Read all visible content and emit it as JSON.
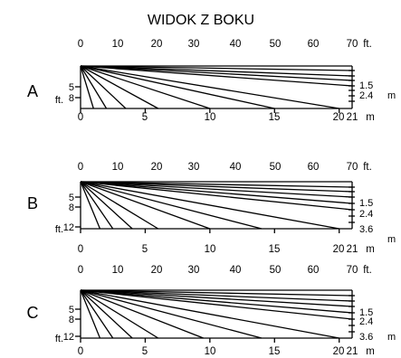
{
  "title": "WIDOK Z BOKU",
  "ft_tick_labels": [
    "0",
    "10",
    "20",
    "30",
    "40",
    "50",
    "60",
    "70"
  ],
  "ft_suffix": "ft.",
  "m_tick_labels": [
    "0",
    "5",
    "10",
    "15",
    "20",
    "21"
  ],
  "m_suffix": "m",
  "sections": [
    {
      "label": "A",
      "left_marks": [
        "5",
        "8"
      ],
      "left_unit": "ft.",
      "right_marks": [
        "1.5",
        "2.4"
      ],
      "right_unit": "m",
      "beam_end_x_m": [
        [
          21,
          21,
          21,
          21
        ],
        [
          20,
          15,
          10,
          6,
          3.5,
          2,
          1
        ]
      ]
    },
    {
      "label": "B",
      "left_marks": [
        "5",
        "8",
        "12"
      ],
      "left_unit": "ft.",
      "right_marks": [
        "1.5",
        "2.4",
        "3.6"
      ],
      "right_unit": "m",
      "beam_end_x_m": [
        [
          21,
          21,
          21,
          21,
          21
        ],
        [
          20,
          14,
          10,
          6,
          4,
          2.5,
          1.5
        ]
      ]
    },
    {
      "label": "C",
      "left_marks": [
        "5",
        "8",
        "12"
      ],
      "left_unit": "ft.",
      "right_marks": [
        "1.5",
        "2.4",
        "3.6"
      ],
      "right_unit": "m",
      "beam_end_x_m": [
        [
          21,
          21,
          21,
          21,
          21
        ],
        [
          20,
          14,
          9.5,
          6,
          4,
          2.5,
          1.5
        ]
      ]
    }
  ]
}
